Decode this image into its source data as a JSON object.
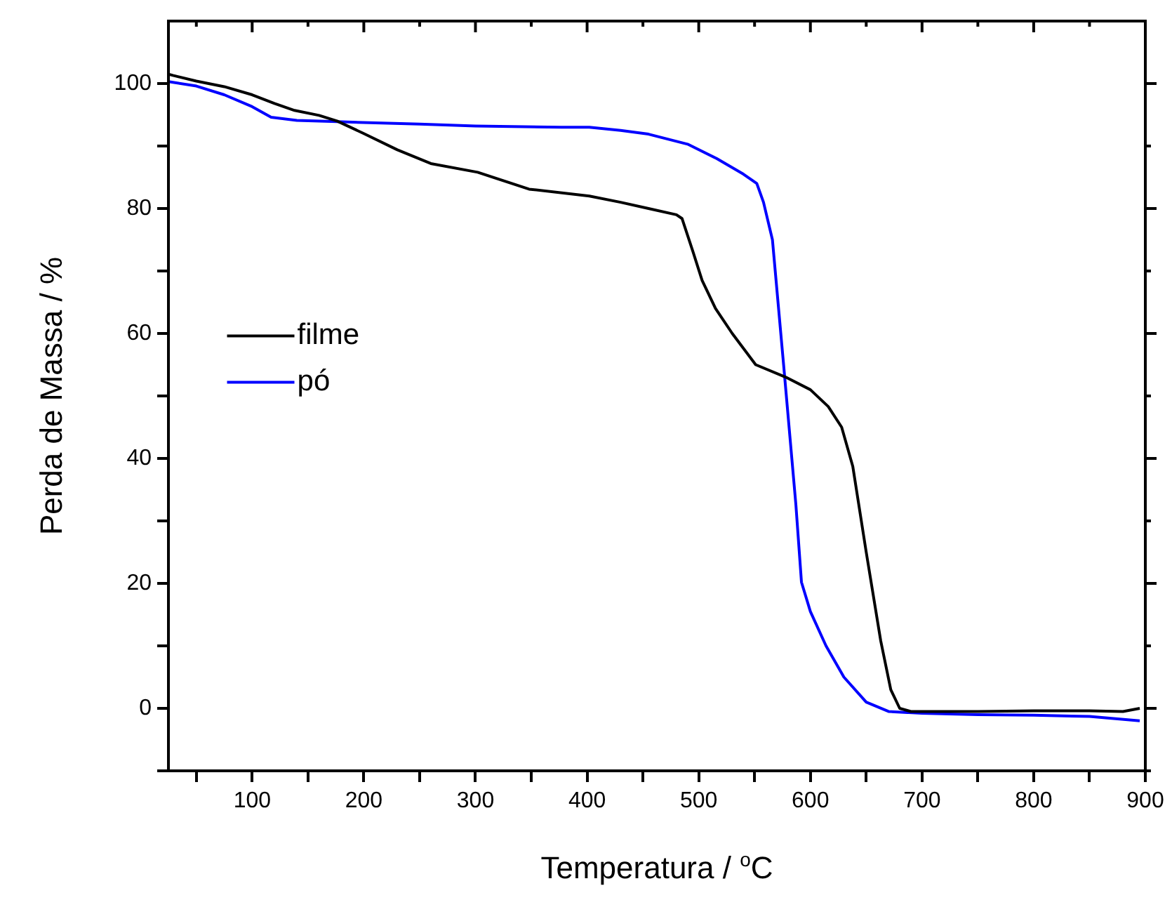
{
  "chart_data": {
    "type": "line",
    "xlabel": "Temperatura / $^{o}$C",
    "ylabel": "Perda de Massa / %",
    "xlim": [
      25,
      900
    ],
    "ylim": [
      -10,
      110
    ],
    "xticks": [
      {
        "value": 50,
        "label": null
      },
      100,
      {
        "value": 150,
        "label": null
      },
      200,
      {
        "value": 250,
        "label": null
      },
      300,
      {
        "value": 350,
        "label": null
      },
      400,
      {
        "value": 450,
        "label": null
      },
      500,
      {
        "value": 550,
        "label": null
      },
      600,
      {
        "value": 650,
        "label": null
      },
      700,
      {
        "value": 750,
        "label": null
      },
      800,
      {
        "value": 850,
        "label": null
      },
      900
    ],
    "yticks": [
      {
        "value": -10,
        "label": null
      },
      0,
      {
        "value": 10,
        "label": null
      },
      20,
      {
        "value": 30,
        "label": null
      },
      40,
      {
        "value": 50,
        "label": null
      },
      60,
      {
        "value": 70,
        "label": null
      },
      80,
      {
        "value": 90,
        "label": null
      },
      100
    ],
    "grid": false,
    "legend": "left",
    "marker": "none",
    "line_style": "solid",
    "series": [
      {
        "name": "filme",
        "color": "#000000",
        "x": [
          25,
          29,
          50,
          75,
          100,
          120,
          138,
          160,
          176,
          200,
          230,
          260,
          302,
          348,
          402,
          430,
          455,
          480,
          485,
          495,
          503,
          515,
          530,
          551,
          578,
          600,
          616,
          628,
          638,
          650,
          663,
          672,
          680,
          690,
          750,
          800,
          850,
          880,
          895
        ],
        "values": [
          101.5,
          101.3,
          100.4,
          99.5,
          98.2,
          96.8,
          95.7,
          94.9,
          94,
          92,
          89.4,
          87.2,
          85.8,
          83.1,
          82,
          81,
          80,
          79,
          78.4,
          73,
          68.5,
          64,
          60,
          55,
          53,
          51,
          48.3,
          45,
          38.7,
          25,
          10.8,
          3,
          0,
          -0.5,
          -0.5,
          -0.4,
          -0.4,
          -0.5,
          0
        ]
      },
      {
        "name": "pó",
        "color": "#0000ff",
        "x": [
          25,
          29,
          50,
          75,
          100,
          117,
          140,
          176,
          250,
          300,
          377,
          402,
          430,
          455,
          490,
          516,
          540,
          552,
          558,
          566,
          576,
          587,
          592,
          600,
          614,
          630,
          650,
          670,
          700,
          750,
          800,
          850,
          895
        ],
        "values": [
          100.3,
          100.2,
          99.6,
          98.2,
          96.3,
          94.6,
          94.1,
          93.9,
          93.5,
          93.2,
          93,
          93,
          92.5,
          91.9,
          90.3,
          88,
          85.5,
          84,
          81,
          75,
          55,
          32.6,
          20.2,
          15.5,
          10,
          5,
          1,
          -0.5,
          -0.8,
          -1,
          -1.1,
          -1.3,
          -2
        ]
      }
    ]
  }
}
